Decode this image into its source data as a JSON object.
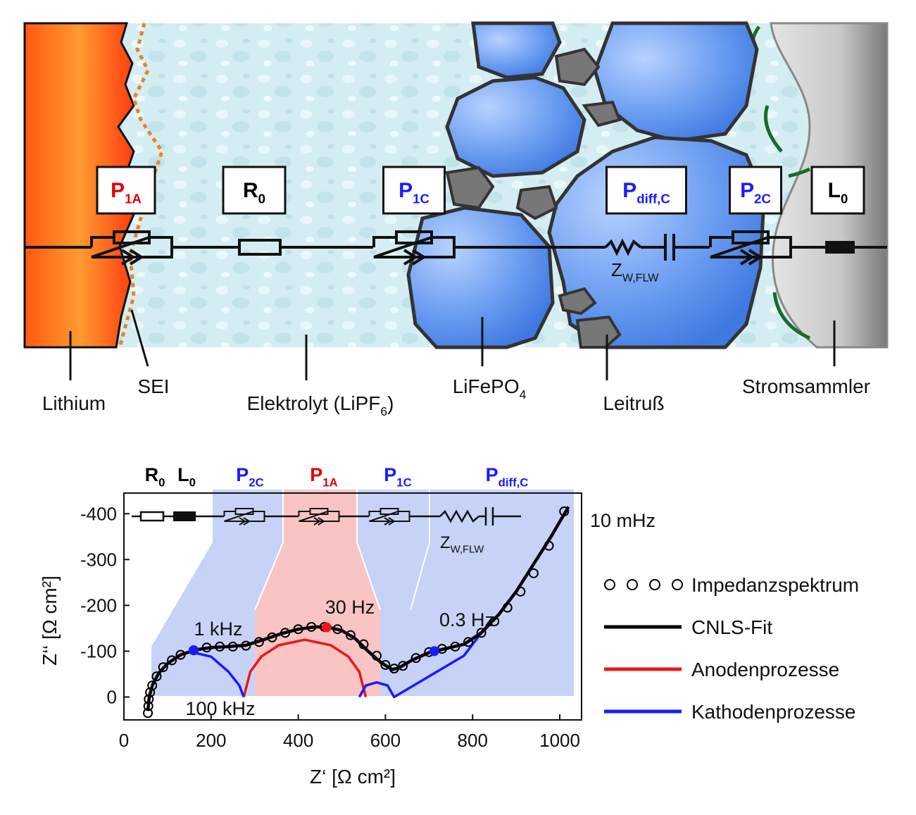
{
  "diagram": {
    "boxes": [
      {
        "main": "P",
        "sub": "1A",
        "color": "#e00000"
      },
      {
        "main": "R",
        "sub": "0",
        "color": "#000000"
      },
      {
        "main": "P",
        "sub": "1C",
        "color": "#1a1aff"
      },
      {
        "main": "P",
        "sub": "diff,C",
        "color": "#1a1aff"
      },
      {
        "main": "P",
        "sub": "2C",
        "color": "#1a1aff"
      },
      {
        "main": "L",
        "sub": "0",
        "color": "#000000"
      }
    ],
    "element_label": {
      "main": "Z",
      "sub": "W,FLW"
    },
    "labels": [
      {
        "text": "Lithium"
      },
      {
        "text": "SEI"
      },
      {
        "text": "Elektrolyt (LiPF",
        "sub": "6",
        "tail": ")"
      },
      {
        "text": "LiFePO",
        "sub": "4"
      },
      {
        "text": "Leitruß"
      },
      {
        "text": "Stromsammler"
      }
    ]
  },
  "chart_data": {
    "type": "line",
    "x_label": "Z‘ [Ω cm²]",
    "y_label": "Z‘‘ [Ω cm²]",
    "xlim": [
      0,
      1050
    ],
    "ylim": [
      50,
      -445
    ],
    "xticks": [
      0,
      200,
      400,
      600,
      800,
      1000
    ],
    "yticks": [
      -400,
      -300,
      -200,
      -100,
      0
    ],
    "circuit_labels": [
      {
        "main": "R",
        "sub": "0",
        "color": "#000000"
      },
      {
        "main": "L",
        "sub": "0",
        "color": "#000000"
      },
      {
        "main": "P",
        "sub": "2C",
        "color": "#1a1aff"
      },
      {
        "main": "P",
        "sub": "1A",
        "color": "#e00000"
      },
      {
        "main": "P",
        "sub": "1C",
        "color": "#1a1aff"
      },
      {
        "main": "P",
        "sub": "diff,C",
        "color": "#1a1aff"
      }
    ],
    "circuit_element": {
      "main": "Z",
      "sub": "W,FLW"
    },
    "series": [
      {
        "name": "Impedanzspektrum",
        "color": "#000000",
        "style": "markers",
        "x": [
          55,
          56,
          57,
          60,
          65,
          75,
          90,
          110,
          130,
          160,
          190,
          220,
          250,
          280,
          310,
          340,
          370,
          400,
          430,
          460,
          490,
          520,
          550,
          580,
          600,
          620,
          640,
          670,
          700,
          730,
          760,
          790,
          820,
          850,
          880,
          910,
          940,
          975,
          1010
        ],
        "values": [
          35,
          20,
          5,
          -10,
          -25,
          -45,
          -65,
          -80,
          -92,
          -102,
          -108,
          -110,
          -110,
          -112,
          -120,
          -130,
          -140,
          -148,
          -153,
          -153,
          -148,
          -135,
          -115,
          -90,
          -70,
          -62,
          -68,
          -85,
          -98,
          -105,
          -110,
          -120,
          -140,
          -165,
          -195,
          -230,
          -270,
          -330,
          -405
        ]
      },
      {
        "name": "CNLS-Fit",
        "color": "#000000",
        "style": "line",
        "x": [
          55,
          58,
          65,
          80,
          100,
          130,
          165,
          200,
          240,
          280,
          320,
          360,
          400,
          440,
          470,
          500,
          530,
          560,
          590,
          615,
          630,
          660,
          700,
          740,
          780,
          820,
          860,
          900,
          940,
          980,
          1020
        ],
        "values": [
          30,
          0,
          -25,
          -52,
          -73,
          -92,
          -103,
          -108,
          -110,
          -113,
          -125,
          -138,
          -148,
          -153,
          -152,
          -145,
          -128,
          -100,
          -75,
          -60,
          -63,
          -80,
          -97,
          -106,
          -115,
          -140,
          -180,
          -230,
          -290,
          -350,
          -415
        ]
      },
      {
        "name": "Anodenprozesse",
        "color": "#e81818",
        "style": "line",
        "x": [
          275,
          290,
          315,
          355,
          415,
          475,
          515,
          540,
          555
        ],
        "values": [
          0,
          -55,
          -88,
          -113,
          -125,
          -113,
          -88,
          -55,
          0
        ]
      },
      {
        "name": "Kathodenprozesse",
        "color": "#1a1aff",
        "style": "line",
        "x": [
          160,
          200,
          240,
          265,
          275,
          540,
          540,
          555,
          580,
          605,
          620,
          620,
          700,
          780,
          820
        ],
        "values": [
          -97,
          -88,
          -55,
          -25,
          0,
          null,
          0,
          -25,
          -32,
          -25,
          0,
          0,
          -45,
          -90,
          -140
        ]
      }
    ],
    "annotations": [
      {
        "text": "100 kHz"
      },
      {
        "text": "1 kHz",
        "x": 160,
        "y": -102,
        "color": "#1a1aff"
      },
      {
        "text": "30 Hz",
        "x": 465,
        "y": -152,
        "color": "#e81818"
      },
      {
        "text": "0.3 Hz",
        "x": 712,
        "y": -100,
        "color": "#1a1aff"
      },
      {
        "text": "10 mHz"
      }
    ],
    "legend": "right"
  }
}
